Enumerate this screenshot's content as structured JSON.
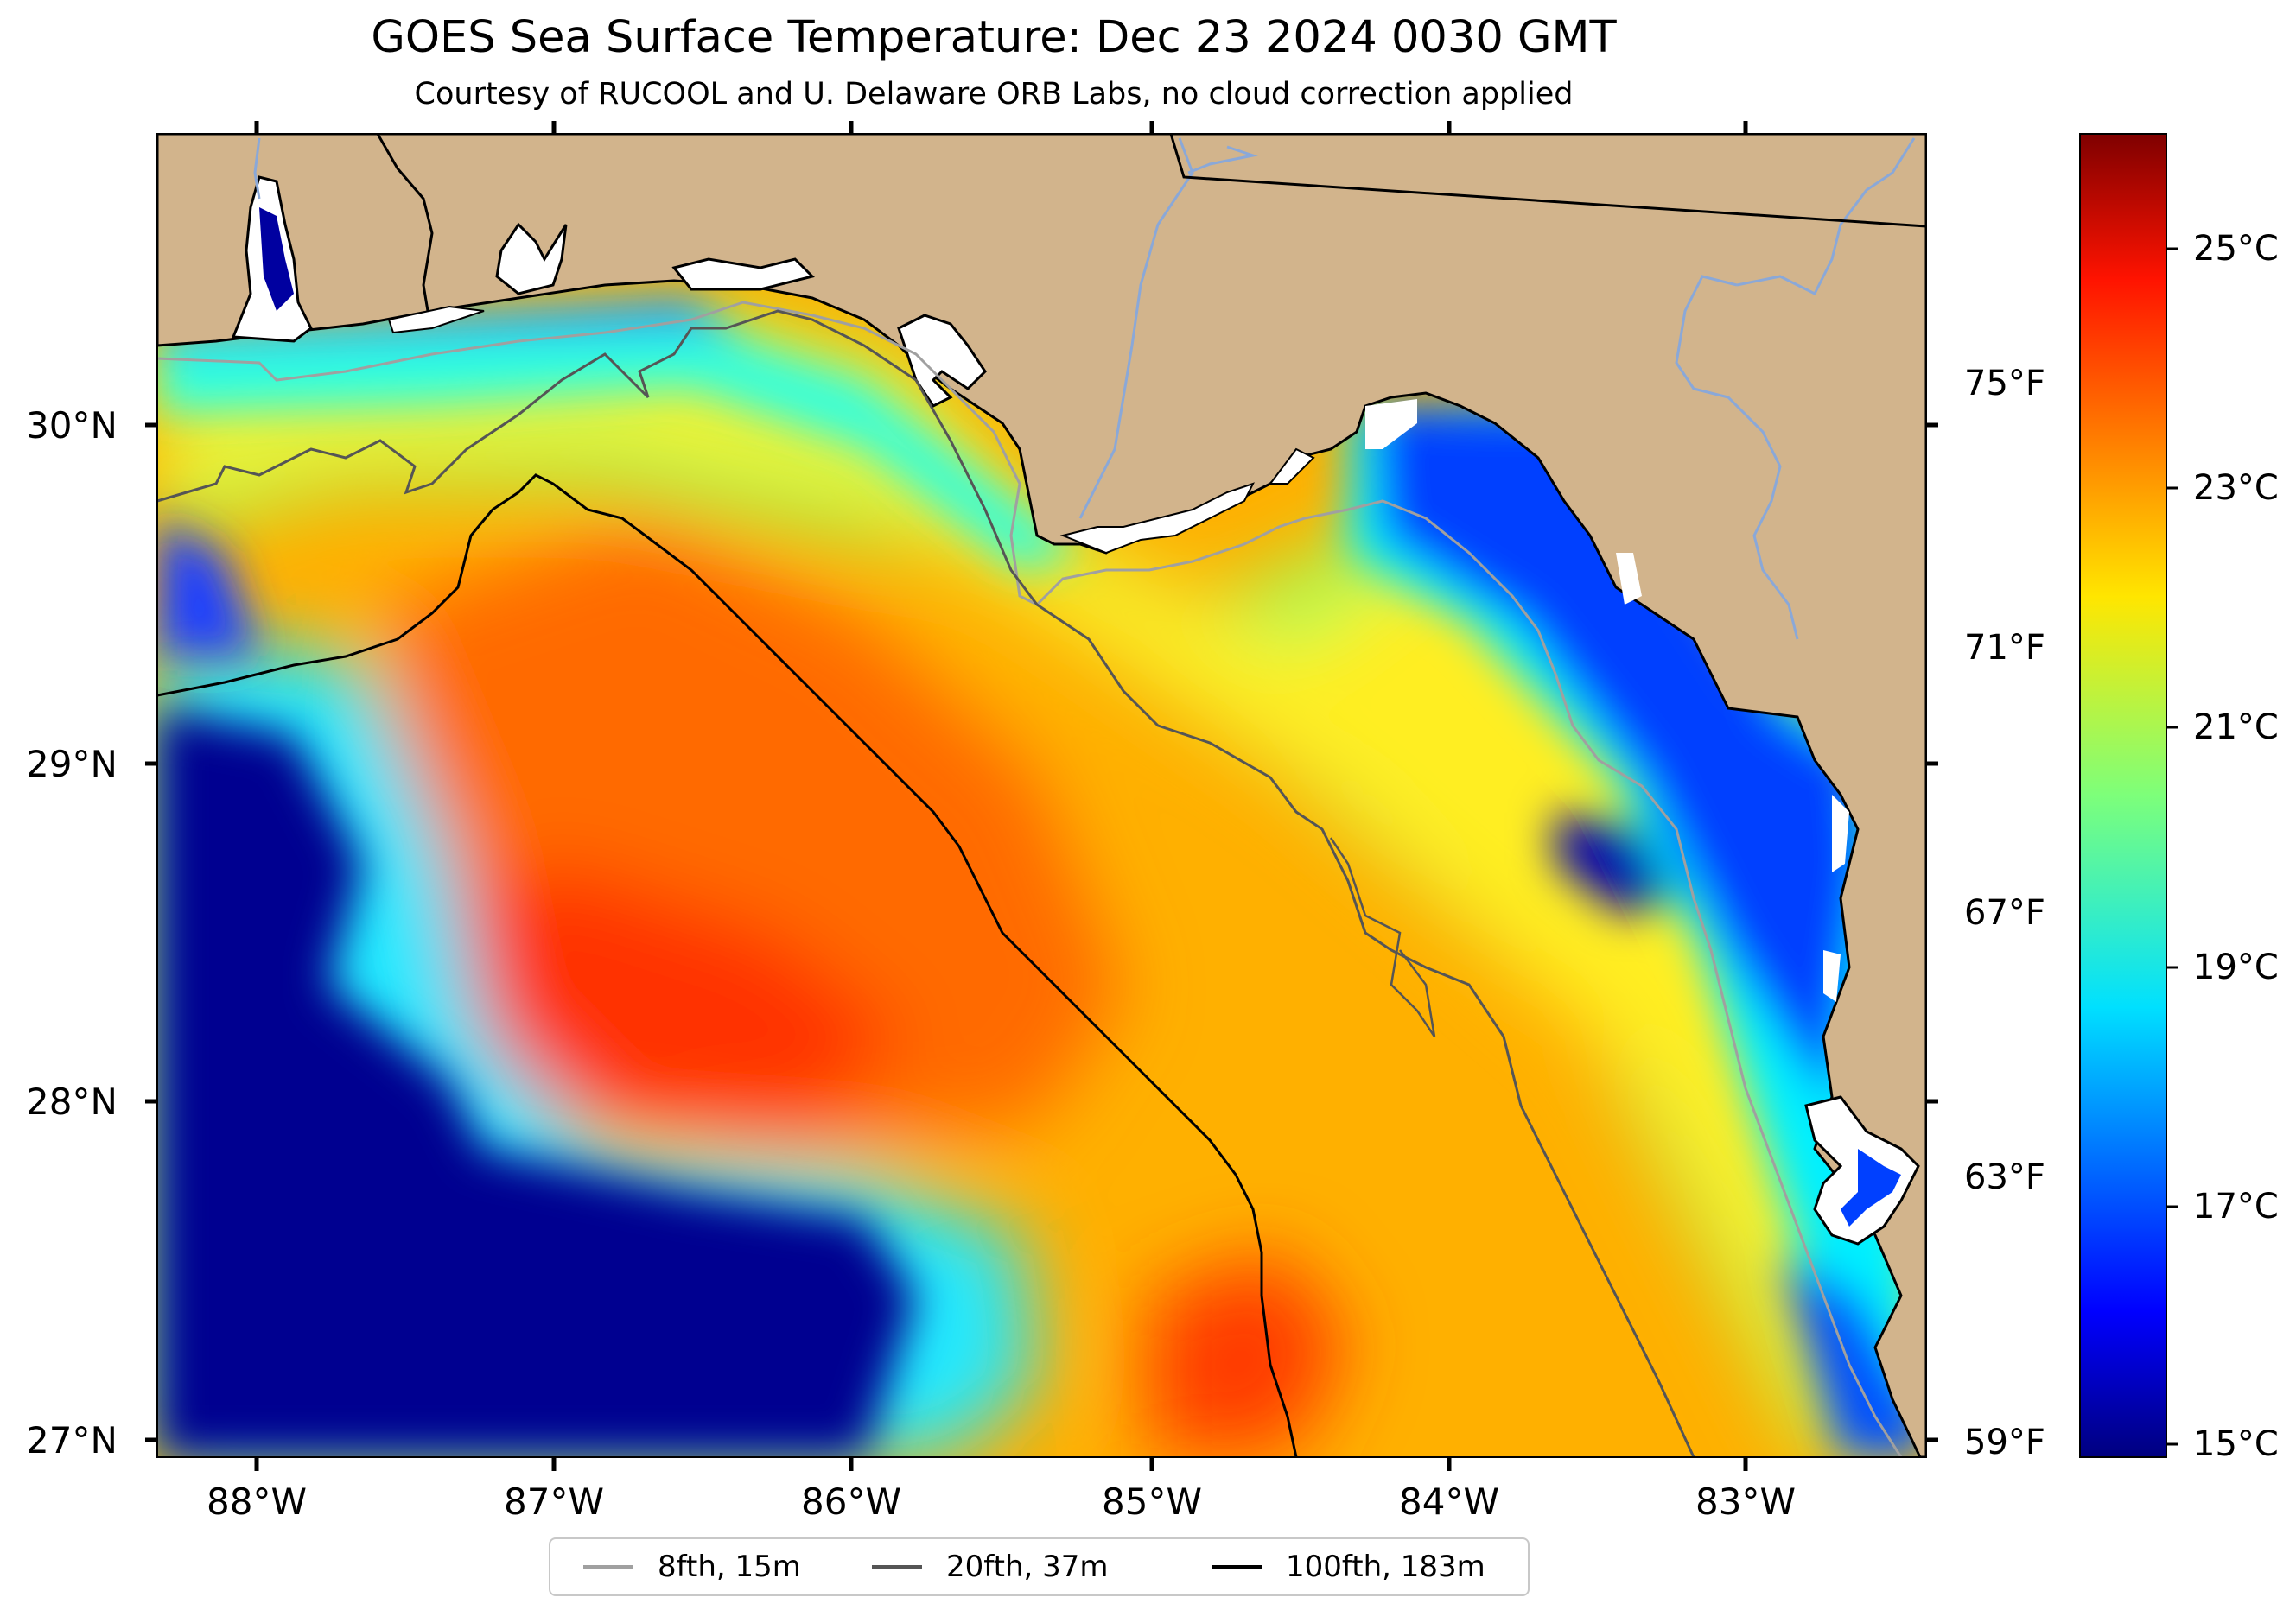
{
  "title": "GOES Sea Surface Temperature: Dec 23 2024 0030 GMT",
  "subtitle": "Courtesy of RUCOOL and U. Delaware ORB Labs, no cloud correction applied",
  "map": {
    "lat_labels": [
      "30°N",
      "29°N",
      "28°N",
      "27°N"
    ],
    "lon_labels": [
      "88°W",
      "87°W",
      "86°W",
      "85°W",
      "84°W",
      "83°W"
    ],
    "extent_deg": {
      "lon_min": -88.35,
      "lon_max": -82.4,
      "lat_min": 26.93,
      "lat_max": 30.86
    },
    "colors": {
      "land": "#d2b48c",
      "cloud_mask": "#ffffff",
      "coastline": "#000000"
    }
  },
  "colorbar": {
    "colormap": "jet",
    "celsius_labels": [
      "25°C",
      "23°C",
      "21°C",
      "19°C",
      "17°C",
      "15°C"
    ],
    "fahrenheit_labels": [
      "75°F",
      "71°F",
      "67°F",
      "63°F",
      "59°F"
    ],
    "range_c": [
      14.8,
      26.0
    ]
  },
  "legend": {
    "items": [
      {
        "label": "8fth, 15m",
        "color": "#a0a0a0"
      },
      {
        "label": "20fth, 37m",
        "color": "#555555"
      },
      {
        "label": "100fth, 183m",
        "color": "#000000"
      }
    ]
  }
}
